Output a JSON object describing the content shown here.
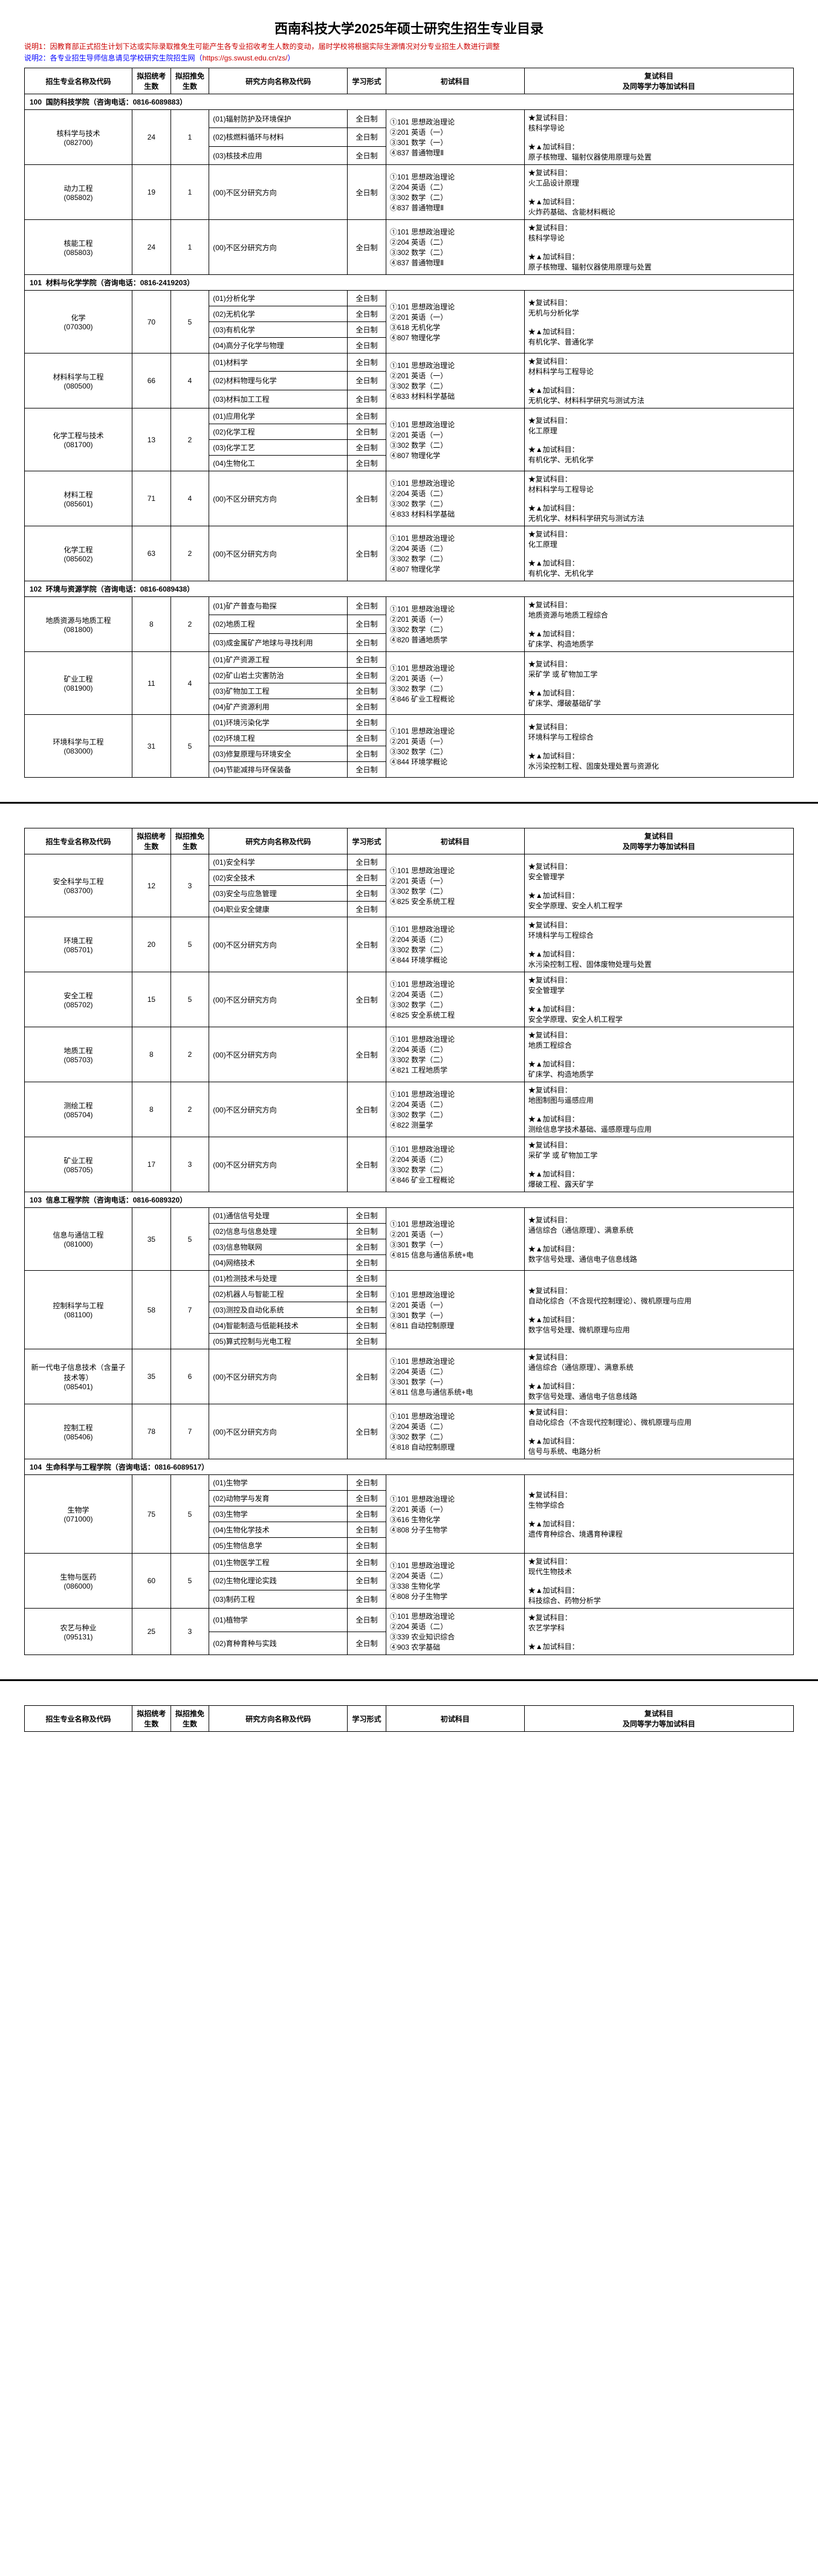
{
  "title": "西南科技大学2025年硕士研究生招生专业目录",
  "note1": "说明1：因教育部正式招生计划下达或实际录取推免生可能产生各专业招收考生人数的变动，届时学校将根据实际生源情况对分专业招生人数进行调整",
  "note2_prefix": "说明2：各专业招生导师信息请见学校研究生院招生网（",
  "note2_link": "https://gs.swust.edu.cn/zs/",
  "note2_suffix": "）",
  "headers": {
    "major": "招生专业名称及代码",
    "plan": "拟招统考生数",
    "tuimian": "拟招推免生数",
    "direction": "研究方向名称及代码",
    "form": "学习形式",
    "exam": "初试科目",
    "retry": "复试科目\n及同等学力等加试科目"
  },
  "form_full": "全日制",
  "pages": [
    {
      "departments": [
        {
          "code": "100",
          "name": "国防科技学院",
          "phone": "（咨询电话：0816-6089883）",
          "majors": [
            {
              "name": "核科学与技术\n(082700)",
              "plan": "24",
              "tuimian": "1",
              "directions": [
                "(01)辐射防护及环境保护",
                "(02)核燃料循环与材料",
                "(03)核技术应用"
              ],
              "exam": "①101 思想政治理论\n②201 英语（一）\n③301 数学（一）\n④837 普通物理Ⅱ",
              "retry": "★复试科目：\n核科学导论\n\n★▲加试科目：\n原子核物理、辐射仪器使用原理与处置"
            },
            {
              "name": "动力工程\n(085802)",
              "plan": "19",
              "tuimian": "1",
              "directions": [
                "(00)不区分研究方向"
              ],
              "exam": "①101 思想政治理论\n②204 英语（二）\n③302 数学（二）\n④837 普通物理Ⅱ",
              "retry": "★复试科目：\n火工品设计原理\n\n★▲加试科目：\n火炸药基础、含能材料概论"
            },
            {
              "name": "核能工程\n(085803)",
              "plan": "24",
              "tuimian": "1",
              "directions": [
                "(00)不区分研究方向"
              ],
              "exam": "①101 思想政治理论\n②204 英语（二）\n③302 数学（二）\n④837 普通物理Ⅱ",
              "retry": "★复试科目：\n核科学导论\n\n★▲加试科目：\n原子核物理、辐射仪器使用原理与处置"
            }
          ]
        },
        {
          "code": "101",
          "name": "材料与化学学院",
          "phone": "（咨询电话：0816-2419203）",
          "majors": [
            {
              "name": "化学\n(070300)",
              "plan": "70",
              "tuimian": "5",
              "directions": [
                "(01)分析化学",
                "(02)无机化学",
                "(03)有机化学",
                "(04)高分子化学与物理"
              ],
              "exam": "①101 思想政治理论\n②201 英语（一）\n③618 无机化学\n④807 物理化学",
              "retry": "★复试科目：\n无机与分析化学\n\n★▲加试科目：\n有机化学、普通化学"
            },
            {
              "name": "材料科学与工程\n(080500)",
              "plan": "66",
              "tuimian": "4",
              "directions": [
                "(01)材料学",
                "(02)材料物理与化学",
                "(03)材料加工工程"
              ],
              "exam": "①101 思想政治理论\n②201 英语（一）\n③302 数学（二）\n④833 材料科学基础",
              "retry": "★复试科目：\n材料科学与工程导论\n\n★▲加试科目：\n无机化学、材料科学研究与测试方法"
            },
            {
              "name": "化学工程与技术\n(081700)",
              "plan": "13",
              "tuimian": "2",
              "directions": [
                "(01)应用化学",
                "(02)化学工程",
                "(03)化学工艺",
                "(04)生物化工"
              ],
              "exam": "①101 思想政治理论\n②201 英语（一）\n③302 数学（二）\n④807 物理化学",
              "retry": "★复试科目：\n化工原理\n\n★▲加试科目：\n有机化学、无机化学"
            },
            {
              "name": "材料工程\n(085601)",
              "plan": "71",
              "tuimian": "4",
              "directions": [
                "(00)不区分研究方向"
              ],
              "exam": "①101 思想政治理论\n②204 英语（二）\n③302 数学（二）\n④833 材料科学基础",
              "retry": "★复试科目：\n材料科学与工程导论\n\n★▲加试科目：\n无机化学、材料科学研究与测试方法"
            },
            {
              "name": "化学工程\n(085602)",
              "plan": "63",
              "tuimian": "2",
              "directions": [
                "(00)不区分研究方向"
              ],
              "exam": "①101 思想政治理论\n②204 英语（二）\n③302 数学（二）\n④807 物理化学",
              "retry": "★复试科目：\n化工原理\n\n★▲加试科目：\n有机化学、无机化学"
            }
          ]
        },
        {
          "code": "102",
          "name": "环境与资源学院",
          "phone": "（咨询电话：0816-6089438）",
          "majors": [
            {
              "name": "地质资源与地质工程\n(081800)",
              "plan": "8",
              "tuimian": "2",
              "directions": [
                "(01)矿产普查与勘探",
                "(02)地质工程",
                "(03)成金属矿产地球与寻找利用"
              ],
              "exam": "①101 思想政治理论\n②201 英语（一）\n③302 数学（二）\n④820 普通地质学",
              "retry": "★复试科目：\n地质资源与地质工程综合\n\n★▲加试科目：\n矿床学、构造地质学"
            },
            {
              "name": "矿业工程\n(081900)",
              "plan": "11",
              "tuimian": "4",
              "directions": [
                "(01)矿产资源工程",
                "(02)矿山岩土灾害防治",
                "(03)矿物加工工程",
                "(04)矿产资源利用"
              ],
              "exam": "①101 思想政治理论\n②201 英语（一）\n③302 数学（二）\n④846 矿业工程概论",
              "retry": "★复试科目：\n采矿学 或 矿物加工学\n\n★▲加试科目：\n矿床学、爆破基础矿学"
            },
            {
              "name": "环境科学与工程\n(083000)",
              "plan": "31",
              "tuimian": "5",
              "directions": [
                "(01)环境污染化学",
                "(02)环境工程",
                "(03)修复原理与环境安全",
                "(04)节能减排与环保装备"
              ],
              "exam": "①101 思想政治理论\n②201 英语（一）\n③302 数学（二）\n④844 环境学概论",
              "retry": "★复试科目：\n环境科学与工程综合\n\n★▲加试科目：\n水污染控制工程、固废处理处置与资源化"
            }
          ]
        }
      ]
    },
    {
      "departments": [
        {
          "code": "",
          "name": "",
          "phone": "",
          "majors": [
            {
              "name": "安全科学与工程\n(083700)",
              "plan": "12",
              "tuimian": "3",
              "directions": [
                "(01)安全科学",
                "(02)安全技术",
                "(03)安全与应急管理",
                "(04)职业安全健康"
              ],
              "exam": "①101 思想政治理论\n②201 英语（一）\n③302 数学（二）\n④825 安全系统工程",
              "retry": "★复试科目：\n安全管理学\n\n★▲加试科目：\n安全学原理、安全人机工程学"
            },
            {
              "name": "环境工程\n(085701)",
              "plan": "20",
              "tuimian": "5",
              "directions": [
                "(00)不区分研究方向"
              ],
              "exam": "①101 思想政治理论\n②204 英语（二）\n③302 数学（二）\n④844 环境学概论",
              "retry": "★复试科目：\n环境科学与工程综合\n\n★▲加试科目：\n水污染控制工程、固体废物处理与处置"
            },
            {
              "name": "安全工程\n(085702)",
              "plan": "15",
              "tuimian": "5",
              "directions": [
                "(00)不区分研究方向"
              ],
              "exam": "①101 思想政治理论\n②204 英语（二）\n③302 数学（二）\n④825 安全系统工程",
              "retry": "★复试科目：\n安全管理学\n\n★▲加试科目：\n安全学原理、安全人机工程学"
            },
            {
              "name": "地质工程\n(085703)",
              "plan": "8",
              "tuimian": "2",
              "directions": [
                "(00)不区分研究方向"
              ],
              "exam": "①101 思想政治理论\n②204 英语（二）\n③302 数学（二）\n④821 工程地质学",
              "retry": "★复试科目：\n地质工程综合\n\n★▲加试科目：\n矿床学、构造地质学"
            },
            {
              "name": "测绘工程\n(085704)",
              "plan": "8",
              "tuimian": "2",
              "directions": [
                "(00)不区分研究方向"
              ],
              "exam": "①101 思想政治理论\n②204 英语（二）\n③302 数学（二）\n④822 测量学",
              "retry": "★复试科目：\n地图制图与遥感应用\n\n★▲加试科目：\n测绘信息学技术基础、遥感原理与应用"
            },
            {
              "name": "矿业工程\n(085705)",
              "plan": "17",
              "tuimian": "3",
              "directions": [
                "(00)不区分研究方向"
              ],
              "exam": "①101 思想政治理论\n②204 英语（二）\n③302 数学（二）\n④846 矿业工程概论",
              "retry": "★复试科目：\n采矿学 或 矿物加工学\n\n★▲加试科目：\n爆破工程、露天矿学"
            }
          ]
        },
        {
          "code": "103",
          "name": "信息工程学院",
          "phone": "（咨询电话：0816-6089320）",
          "majors": [
            {
              "name": "信息与通信工程\n(081000)",
              "plan": "35",
              "tuimian": "5",
              "directions": [
                "(01)通信信号处理",
                "(02)信息与信息处理",
                "(03)信息物联网",
                "(04)网络技术"
              ],
              "exam": "①101 思想政治理论\n②201 英语（一）\n③301 数学（一）\n④815 信息与通信系统+电",
              "retry": "★复试科目：\n通信综合（通信原理）、满意系统\n\n★▲加试科目：\n数字信号处理、通信电子信息线路"
            },
            {
              "name": "控制科学与工程\n(081100)",
              "plan": "58",
              "tuimian": "7",
              "directions": [
                "(01)检测技术与处理",
                "(02)机器人与智能工程",
                "(03)测控及自动化系统",
                "(04)智能制造与低能耗技术",
                "(05)算式控制与光电工程"
              ],
              "exam": "①101 思想政治理论\n②201 英语（一）\n③301 数学（一）\n④811 自动控制原理",
              "retry": "★复试科目：\n自动化综合（不含现代控制理论）、微机原理与应用\n\n★▲加试科目：\n数字信号处理、微机原理与应用"
            },
            {
              "name": "新一代电子信息技术（含量子技术等）\n(085401)",
              "plan": "35",
              "tuimian": "6",
              "directions": [
                "(00)不区分研究方向"
              ],
              "exam": "①101 思想政治理论\n②204 英语（二）\n③301 数学（一）\n④811 信息与通信系统+电",
              "retry": "★复试科目：\n通信综合（通信原理）、满意系统\n\n★▲加试科目：\n数字信号处理、通信电子信息线路"
            },
            {
              "name": "控制工程\n(085406)",
              "plan": "78",
              "tuimian": "7",
              "directions": [
                "(00)不区分研究方向"
              ],
              "exam": "①101 思想政治理论\n②204 英语（二）\n③302 数学（二）\n④818 自动控制原理",
              "retry": "★复试科目：\n自动化综合（不含现代控制理论）、微机原理与应用\n\n★▲加试科目：\n信号与系统、电路分析"
            }
          ]
        },
        {
          "code": "104",
          "name": "生命科学与工程学院",
          "phone": "（咨询电话：0816-6089517）",
          "majors": [
            {
              "name": "生物学\n(071000)",
              "plan": "75",
              "tuimian": "5",
              "directions": [
                "(01)生物学",
                "(02)动物学与发育",
                "(03)生物学",
                "(04)生物化学技术",
                "(05)生物信息学"
              ],
              "exam": "①101 思想政治理论\n②201 英语（一）\n③616 生物化学\n④808 分子生物学",
              "retry": "★复试科目：\n生物学综合\n\n★▲加试科目：\n遗传育种综合、境遇育种课程"
            },
            {
              "name": "生物与医药\n(086000)",
              "plan": "60",
              "tuimian": "5",
              "directions": [
                "(01)生物医学工程",
                "(02)生物化理论实践",
                "(03)制药工程"
              ],
              "exam": "①101 思想政治理论\n②204 英语（二）\n③338 生物化学\n④808 分子生物学",
              "retry": "★复试科目：\n现代生物技术\n\n★▲加试科目：\n科技综合、药物分析学"
            },
            {
              "name": "农艺与种业\n(095131)",
              "plan": "25",
              "tuimian": "3",
              "directions": [
                "(01)植物学",
                "(02)育种育种与实践"
              ],
              "exam": "①101 思想政治理论\n②204 英语（二）\n③339 农业知识综合\n④903 农学基础",
              "retry": "★复试科目：\n农艺学学科\n\n★▲加试科目："
            }
          ]
        }
      ]
    }
  ]
}
